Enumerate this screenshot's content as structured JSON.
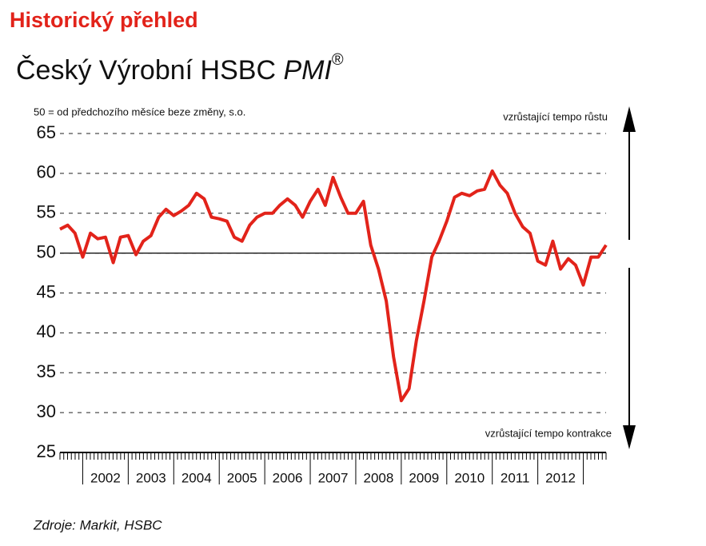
{
  "header": "Historický přehled",
  "chart_data": {
    "type": "line",
    "title": "Český Výrobní HSBC",
    "title_italic": "PMI",
    "title_mark": "®",
    "subtitle": "50 = od předchozího měsíce beze změny, s.o.",
    "annotations": [
      "vzrůstající tempo růstu",
      "vzrůstající tempo kontrakce"
    ],
    "source": "Zdroje: Markit, HSBC",
    "x": [
      2001.5,
      2001.67,
      2001.83,
      2002.0,
      2002.17,
      2002.33,
      2002.5,
      2002.67,
      2002.83,
      2003.0,
      2003.17,
      2003.33,
      2003.5,
      2003.67,
      2003.83,
      2004.0,
      2004.17,
      2004.33,
      2004.5,
      2004.67,
      2004.83,
      2005.0,
      2005.17,
      2005.33,
      2005.5,
      2005.67,
      2005.83,
      2006.0,
      2006.17,
      2006.33,
      2006.5,
      2006.67,
      2006.83,
      2007.0,
      2007.17,
      2007.33,
      2007.5,
      2007.67,
      2007.83,
      2008.0,
      2008.17,
      2008.33,
      2008.5,
      2008.67,
      2008.83,
      2009.0,
      2009.17,
      2009.33,
      2009.5,
      2009.67,
      2009.83,
      2010.0,
      2010.17,
      2010.33,
      2010.5,
      2010.67,
      2010.83,
      2011.0,
      2011.17,
      2011.33,
      2011.5,
      2011.67,
      2011.83,
      2012.0,
      2012.17,
      2012.33,
      2012.5,
      2012.67,
      2012.83,
      2013.0,
      2013.17,
      2013.33,
      2013.5
    ],
    "series": [
      {
        "color": "#e2231a",
        "values": [
          53,
          53.5,
          52.5,
          49.5,
          52.5,
          51.8,
          52,
          48.8,
          52,
          52.2,
          49.8,
          51.5,
          52.2,
          54.5,
          55.5,
          54.7,
          55.3,
          56,
          57.5,
          56.8,
          54.5,
          54.3,
          54,
          52,
          51.5,
          53.5,
          54.5,
          55,
          55,
          56,
          56.8,
          56,
          54.5,
          56.5,
          58,
          56,
          59.5,
          57,
          55,
          55,
          56.5,
          51,
          48,
          44,
          37,
          31.5,
          33,
          39,
          44,
          49.5,
          51.5,
          54,
          57,
          57.5,
          57.2,
          57.8,
          58,
          60.3,
          58.5,
          57.5,
          55,
          53.3,
          52.5,
          49,
          48.5,
          51.5,
          48,
          49.3,
          48.5,
          46,
          49.5,
          49.5,
          51
        ]
      }
    ],
    "xlim": [
      2001.5,
      2013.5
    ],
    "xticks": [
      {
        "value": 2002.5,
        "label": "2002"
      },
      {
        "value": 2003.5,
        "label": "2003"
      },
      {
        "value": 2004.5,
        "label": "2004"
      },
      {
        "value": 2005.5,
        "label": "2005"
      },
      {
        "value": 2006.5,
        "label": "2006"
      },
      {
        "value": 2007.5,
        "label": "2007"
      },
      {
        "value": 2008.5,
        "label": "2008"
      },
      {
        "value": 2009.5,
        "label": "2009"
      },
      {
        "value": 2010.5,
        "label": "2010"
      },
      {
        "value": 2011.5,
        "label": "2011"
      },
      {
        "value": 2012.5,
        "label": "2012"
      }
    ],
    "ylim": [
      25,
      65
    ],
    "yticks": [
      25,
      30,
      35,
      40,
      45,
      50,
      55,
      60,
      65
    ],
    "reference_line": 50,
    "grid": true
  }
}
